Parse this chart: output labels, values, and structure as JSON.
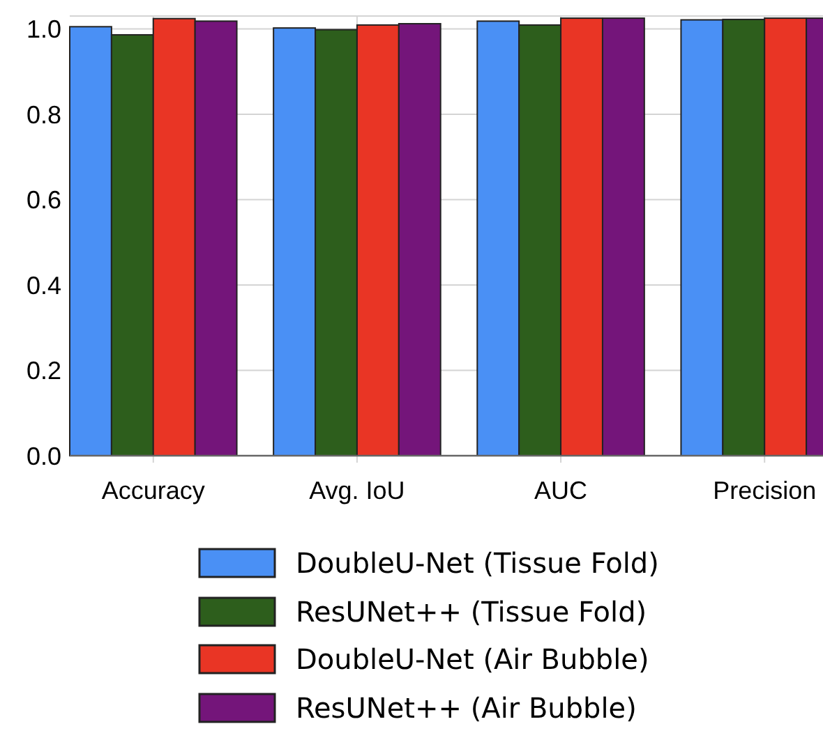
{
  "chart_data": {
    "type": "bar",
    "categories": [
      "Accuracy",
      "Avg. IoU",
      "AUC",
      "Precision"
    ],
    "series": [
      {
        "name": "DoubleU-Net (Tissue Fold)",
        "color": "#4a90f5",
        "values": [
          1.005,
          1.002,
          1.018,
          1.021
        ]
      },
      {
        "name": "ResUNet++ (Tissue Fold)",
        "color": "#2d5e1c",
        "values": [
          0.986,
          0.998,
          1.009,
          1.022
        ]
      },
      {
        "name": "DoubleU-Net (Air Bubble)",
        "color": "#e93525",
        "values": [
          1.024,
          1.009,
          1.025,
          1.025
        ]
      },
      {
        "name": "ResUNet++ (Air Bubble)",
        "color": "#74157a",
        "values": [
          1.018,
          1.012,
          1.025,
          1.025
        ]
      }
    ],
    "ylim": [
      0,
      1.03
    ],
    "yticks": [
      {
        "value": 0,
        "label": "0.0"
      },
      0.2,
      0.4,
      0.6,
      0.8,
      {
        "value": 1,
        "label": "1.0"
      }
    ],
    "grid": true,
    "legend": "bottom"
  }
}
